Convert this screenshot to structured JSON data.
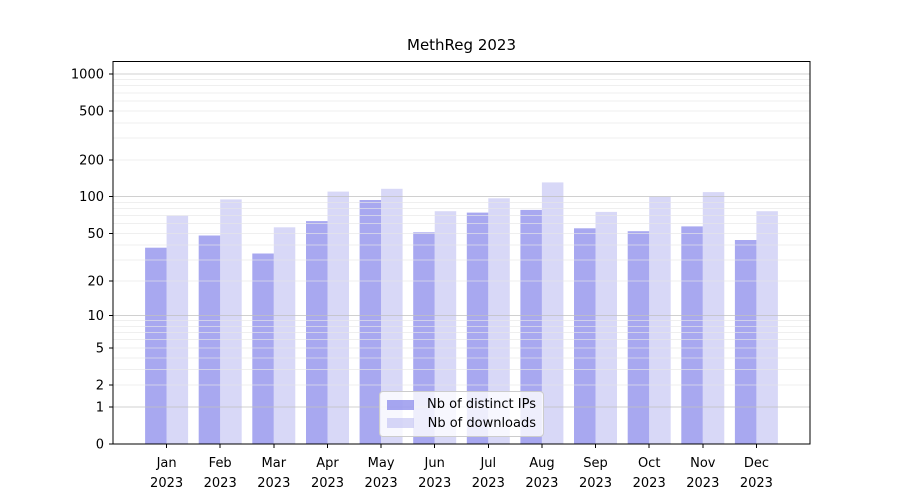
{
  "chart_data": {
    "type": "bar",
    "title": "MethReg 2023",
    "categories": [
      "Jan",
      "Feb",
      "Mar",
      "Apr",
      "May",
      "Jun",
      "Jul",
      "Aug",
      "Sep",
      "Oct",
      "Nov",
      "Dec"
    ],
    "category_year": "2023",
    "series": [
      {
        "name": "Nb of distinct IPs",
        "color": "#a8a8f0",
        "fill": "rgba(115,115,231,0.62)",
        "values": [
          38,
          48,
          34,
          63,
          94,
          51,
          74,
          78,
          55,
          52,
          57,
          44
        ]
      },
      {
        "name": "Nb of downloads",
        "color": "#d8d8f7",
        "fill": "rgba(192,192,242,0.62)",
        "values": [
          70,
          95,
          56,
          110,
          116,
          76,
          97,
          131,
          75,
          100,
          109,
          76
        ]
      }
    ],
    "y_ticks": [
      0,
      1,
      2,
      5,
      10,
      20,
      50,
      100,
      200,
      500,
      1000
    ],
    "scale": "log1p",
    "ylim": [
      0,
      1258
    ],
    "xlabel": "",
    "ylabel": "",
    "grid": {
      "on": true,
      "major": [
        1,
        10,
        100,
        1000
      ],
      "minor": [
        2,
        3,
        4,
        5,
        6,
        7,
        8,
        9,
        20,
        30,
        40,
        50,
        60,
        70,
        80,
        90,
        200,
        300,
        400,
        500,
        600,
        700,
        800,
        900
      ],
      "major_color": "#c0c0c0",
      "minor_color": "#e7e7e7"
    },
    "legend_position": "bottom-center",
    "axis_color": "#000000",
    "background_color": "#ffffff"
  }
}
